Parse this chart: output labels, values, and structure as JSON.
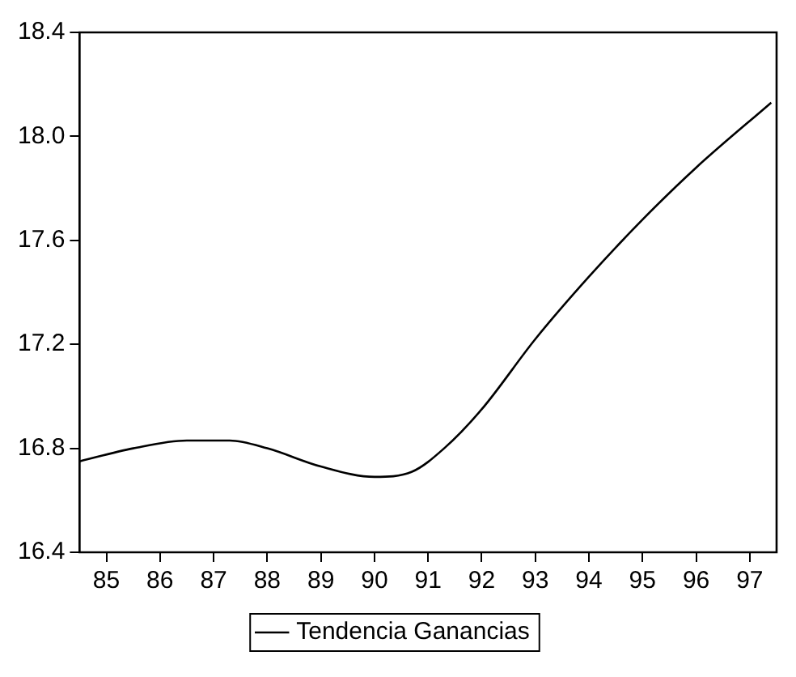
{
  "chart_data": {
    "type": "line",
    "x": [
      84.5,
      85.5,
      86.5,
      87.3,
      88,
      89,
      90,
      90.7,
      91.3,
      92,
      93,
      94,
      95,
      96,
      97.4
    ],
    "series": [
      {
        "name": "Tendencia Ganancias",
        "color": "#000000",
        "values": [
          16.75,
          16.8,
          16.83,
          16.83,
          16.8,
          16.73,
          16.69,
          16.71,
          16.8,
          16.95,
          17.22,
          17.46,
          17.68,
          17.88,
          18.13
        ]
      }
    ],
    "xlim": [
      84.5,
      97.5
    ],
    "xticks": [
      85,
      86,
      87,
      88,
      89,
      90,
      91,
      92,
      93,
      94,
      95,
      96,
      97
    ],
    "ylim": [
      16.4,
      18.4
    ],
    "yticks": [
      16.4,
      16.8,
      17.2,
      17.6,
      {
        "value": 18,
        "label": "18.0"
      },
      18.4
    ],
    "grid": false,
    "legend": "bottom",
    "marker": "none",
    "line_style": "solid"
  }
}
